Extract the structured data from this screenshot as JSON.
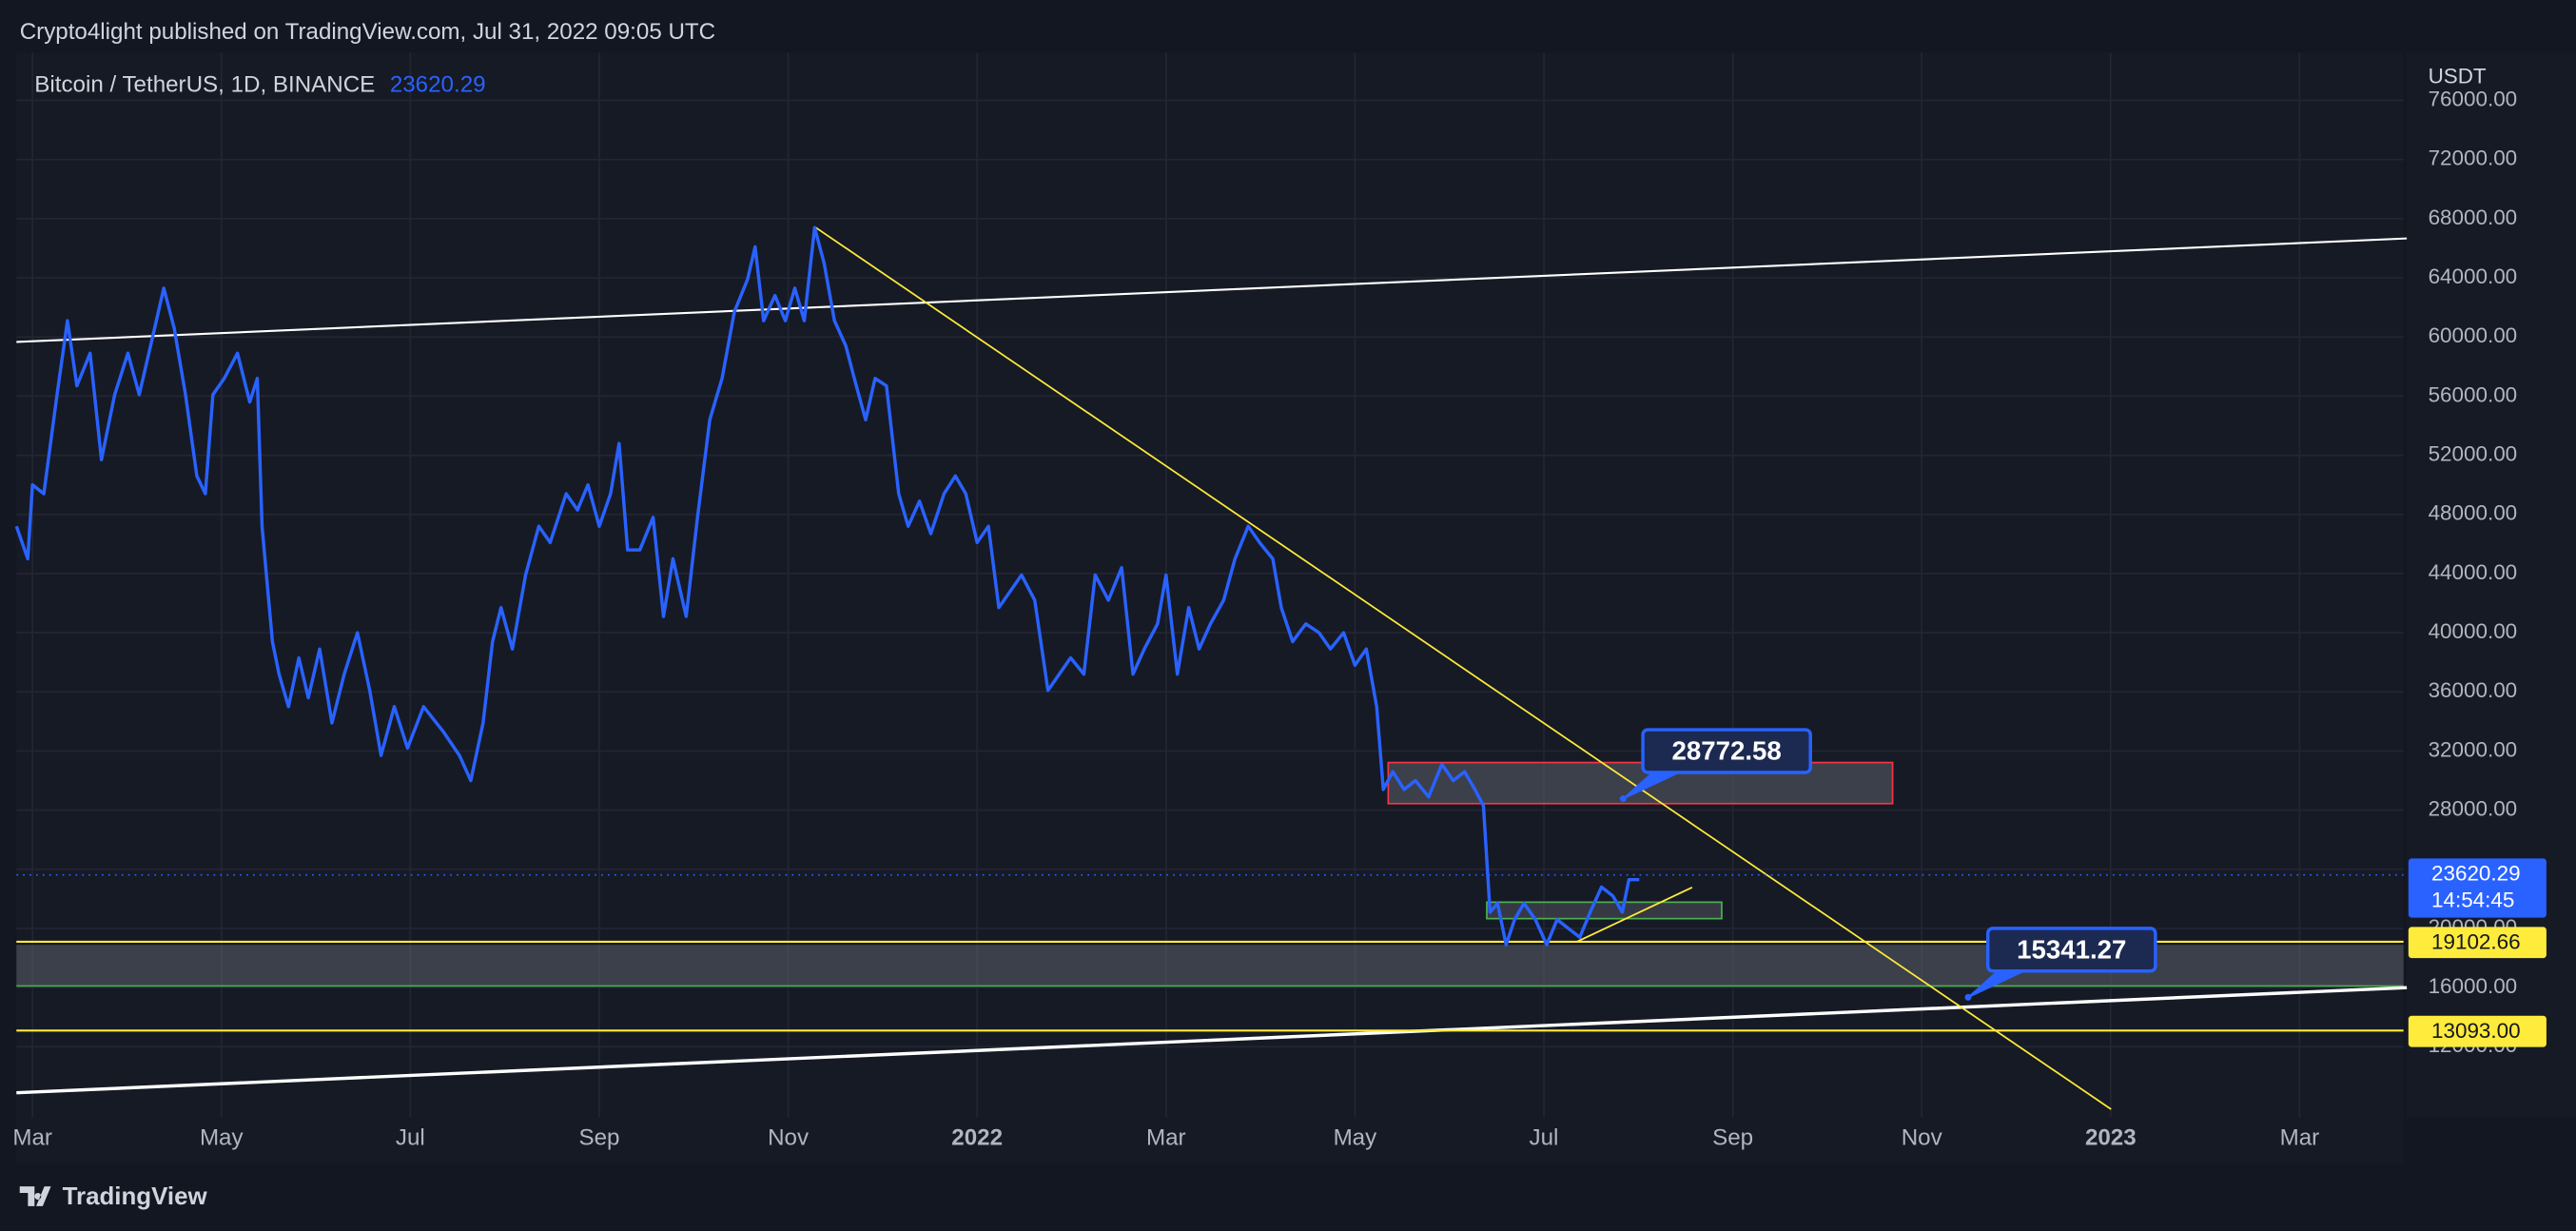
{
  "header": {
    "publisher": "Crypto4light published on TradingView.com, Jul 31, 2022 09:05 UTC"
  },
  "footer": {
    "brand": "TradingView"
  },
  "chart_data": {
    "type": "line",
    "currency": "USDT",
    "series": [
      {
        "name": "Bitcoin / TetherUS, 1D, BINANCE",
        "color": "#2962ff",
        "x": [
          1.83,
          1.95,
          2.0,
          2.12,
          2.26,
          2.37,
          2.47,
          2.61,
          2.73,
          2.87,
          3.01,
          3.13,
          3.25,
          3.39,
          3.5,
          3.62,
          3.74,
          3.83,
          3.91,
          4.03,
          4.17,
          4.3,
          4.38,
          4.43,
          4.54,
          4.61,
          4.71,
          4.82,
          4.92,
          5.04,
          5.17,
          5.3,
          5.44,
          5.57,
          5.69,
          5.83,
          5.97,
          6.14,
          6.35,
          6.52,
          6.64,
          6.77,
          6.87,
          6.96,
          7.08,
          7.22,
          7.36,
          7.48,
          7.65,
          7.77,
          7.88,
          8.0,
          8.12,
          8.21,
          8.3,
          8.43,
          8.57,
          8.68,
          8.78,
          8.92,
          9.04,
          9.17,
          9.3,
          9.43,
          9.57,
          9.65,
          9.74,
          9.86,
          9.97,
          10.07,
          10.17,
          10.28,
          10.38,
          10.49,
          10.61,
          10.7,
          10.82,
          10.92,
          11.04,
          11.17,
          11.27,
          11.39,
          11.51,
          11.65,
          11.77,
          11.88,
          12.0,
          12.12,
          12.23,
          12.35,
          12.47,
          12.61,
          12.75,
          12.87,
          12.99,
          13.13,
          13.25,
          13.39,
          13.53,
          13.65,
          13.77,
          13.91,
          14.0,
          14.12,
          14.24,
          14.35,
          14.47,
          14.61,
          14.73,
          14.87,
          14.99,
          15.13,
          15.22,
          15.34,
          15.48,
          15.62,
          15.74,
          15.88,
          16.0,
          16.12,
          16.23,
          16.3,
          16.4,
          16.52,
          16.64,
          16.78,
          16.92,
          17.04,
          17.16,
          17.27,
          17.36,
          17.43,
          17.51,
          17.6,
          17.69,
          17.79,
          17.91,
          18.03,
          18.14,
          18.26,
          18.38,
          18.49,
          18.61,
          18.73,
          18.83,
          18.9,
          19.01
        ],
        "values": [
          47200,
          45000,
          50000,
          49400,
          56100,
          61100,
          56700,
          58900,
          51700,
          56100,
          58900,
          56100,
          59400,
          63300,
          60600,
          56100,
          50600,
          49400,
          56100,
          57200,
          58900,
          55600,
          57200,
          47200,
          39400,
          37200,
          35000,
          38300,
          35600,
          38900,
          33900,
          37200,
          40000,
          36100,
          31700,
          35000,
          32200,
          35000,
          33300,
          31700,
          30000,
          33900,
          39400,
          41700,
          38900,
          43900,
          47200,
          46100,
          49400,
          48300,
          50000,
          47200,
          49400,
          52800,
          45600,
          45600,
          47800,
          41100,
          45000,
          41100,
          47800,
          54400,
          57200,
          61700,
          63900,
          66100,
          61100,
          62800,
          61100,
          63300,
          61100,
          67400,
          65000,
          61100,
          59400,
          57200,
          54400,
          57200,
          56700,
          49400,
          47200,
          48900,
          46700,
          49400,
          50600,
          49400,
          46100,
          47200,
          41700,
          42800,
          43900,
          42200,
          36100,
          37200,
          38300,
          37200,
          43900,
          42200,
          44400,
          37200,
          38900,
          40600,
          43900,
          37200,
          41700,
          38900,
          40600,
          42200,
          45000,
          47200,
          46100,
          45000,
          41700,
          39400,
          40600,
          40000,
          38900,
          40000,
          37800,
          38900,
          35000,
          29400,
          30600,
          29400,
          30000,
          28900,
          31100,
          30000,
          30600,
          29400,
          28300,
          21100,
          21700,
          18900,
          20600,
          21700,
          20600,
          18900,
          20600,
          20000,
          19400,
          21100,
          22800,
          22200,
          21100,
          23300,
          23300
        ]
      }
    ],
    "last_price": {
      "value": 23620.29,
      "label": "23620.29"
    },
    "countdown": "14:54:45",
    "price_lines": [
      {
        "value": 19102.66,
        "label": "19102.66",
        "color": "#ffeb3b"
      },
      {
        "value": 13093,
        "label": "13093.00",
        "color": "#ffeb3b"
      }
    ],
    "callouts": [
      {
        "value": 28772.58,
        "label": "28772.58"
      },
      {
        "value": 15341.27,
        "label": "15341.27"
      }
    ],
    "xlim": [
      1.83,
      27.1
    ],
    "ylim": [
      7220,
      79220
    ],
    "xticks": [
      {
        "value": 2,
        "label": "Mar"
      },
      {
        "value": 4,
        "label": "May"
      },
      {
        "value": 6,
        "label": "Jul"
      },
      {
        "value": 8,
        "label": "Sep"
      },
      {
        "value": 10,
        "label": "Nov"
      },
      {
        "value": 12,
        "label": "2022"
      },
      {
        "value": 14,
        "label": "Mar"
      },
      {
        "value": 16,
        "label": "May"
      },
      {
        "value": 18,
        "label": "Jul"
      },
      {
        "value": 20,
        "label": "Sep"
      },
      {
        "value": 22,
        "label": "Nov"
      },
      {
        "value": 24,
        "label": "2023"
      },
      {
        "value": 26,
        "label": "Mar"
      }
    ],
    "yticks": [
      {
        "value": 12000,
        "label": "12000.00"
      },
      {
        "value": 16000,
        "label": "16000.00"
      },
      {
        "value": 20000,
        "label": "20000.00"
      },
      {
        "value": 24000,
        "label": "24000.00"
      },
      {
        "value": 28000,
        "label": "28000.00"
      },
      {
        "value": 32000,
        "label": "32000.00"
      },
      {
        "value": 36000,
        "label": "36000.00"
      },
      {
        "value": 40000,
        "label": "40000.00"
      },
      {
        "value": 44000,
        "label": "44000.00"
      },
      {
        "value": 48000,
        "label": "48000.00"
      },
      {
        "value": 52000,
        "label": "52000.00"
      },
      {
        "value": 56000,
        "label": "56000.00"
      },
      {
        "value": 60000,
        "label": "60000.00"
      },
      {
        "value": 64000,
        "label": "64000.00"
      },
      {
        "value": 68000,
        "label": "68000.00"
      },
      {
        "value": 72000,
        "label": "72000.00"
      },
      {
        "value": 76000,
        "label": "76000.00"
      }
    ],
    "grid": true
  }
}
